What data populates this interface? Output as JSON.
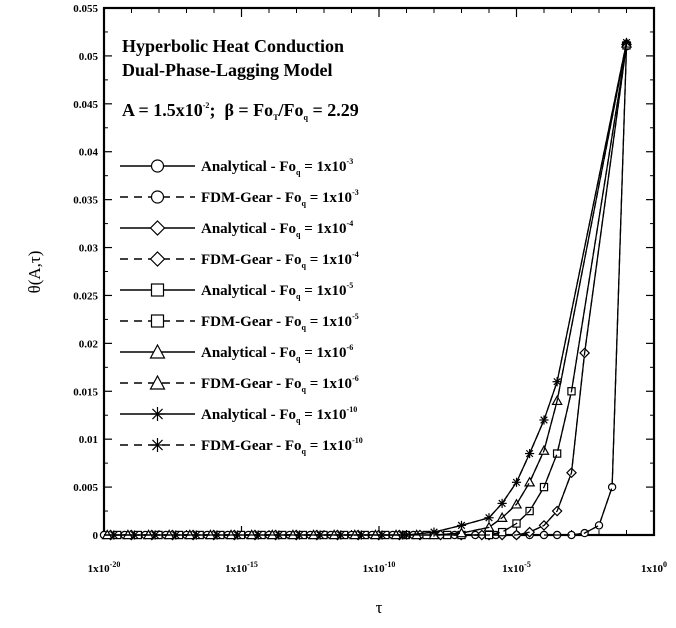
{
  "chart_data": {
    "type": "line",
    "xscale": "log",
    "xlim": [
      1e-20,
      1
    ],
    "ylim": [
      0,
      0.055
    ],
    "xlabel": "τ",
    "ylabel": "θ(A,τ)",
    "grid": false,
    "legend_position": "upper-left inside plot",
    "title_lines": [
      "Hyperbolic Heat Conduction",
      "Dual-Phase-Lagging Model"
    ],
    "params": {
      "A_base": "A = 1.5x10",
      "A_exp": "-2",
      "semi": ";",
      "beta_pre": "β = Fo",
      "tau_sub": "T",
      "slash": "/Fo",
      "q_sub": "q",
      "beta_val": " = 2.29"
    },
    "yticks": [
      "0",
      "0.005",
      "0.01",
      "0.015",
      "0.02",
      "0.025",
      "0.03",
      "0.035",
      "0.04",
      "0.045",
      "0.05",
      "0.055"
    ],
    "xticks": [
      {
        "base": "1x10",
        "exp": "-20"
      },
      {
        "base": "1x10",
        "exp": "-15"
      },
      {
        "base": "1x10",
        "exp": "-10"
      },
      {
        "base": "1x10",
        "exp": "-5"
      },
      {
        "base": "1x10",
        "exp": "0"
      }
    ],
    "series": [
      {
        "method": "Analytical",
        "dash": "solid",
        "marker": "circle",
        "fo_exp": "-3",
        "x": [
          1e-05,
          3e-05,
          0.0001,
          0.0003,
          0.001,
          0.003,
          0.01,
          0.03,
          0.1
        ],
        "y": [
          0,
          0,
          0,
          0,
          0,
          0.0002,
          0.001,
          0.005,
          0.051
        ]
      },
      {
        "method": "FDM-Gear",
        "dash": "dashed",
        "marker": "circle",
        "fo_exp": "-3",
        "x": [
          1e-05,
          3e-05,
          0.0001,
          0.0003,
          0.001,
          0.003,
          0.01,
          0.03,
          0.1
        ],
        "y": [
          0,
          0,
          0,
          0,
          0,
          0.0002,
          0.001,
          0.005,
          0.051
        ]
      },
      {
        "method": "Analytical",
        "dash": "solid",
        "marker": "diamond",
        "fo_exp": "-4",
        "x": [
          1e-06,
          3e-06,
          1e-05,
          3e-05,
          0.0001,
          0.0003,
          0.001,
          0.003,
          0.1
        ],
        "y": [
          0,
          0,
          0,
          0.0003,
          0.001,
          0.0025,
          0.0065,
          0.019,
          0.0512
        ]
      },
      {
        "method": "FDM-Gear",
        "dash": "dashed",
        "marker": "diamond",
        "fo_exp": "-4",
        "x": [
          1e-06,
          3e-06,
          1e-05,
          3e-05,
          0.0001,
          0.0003,
          0.001,
          0.003,
          0.1
        ],
        "y": [
          0,
          0,
          0,
          0.0003,
          0.001,
          0.0025,
          0.0065,
          0.019,
          0.0512
        ]
      },
      {
        "method": "Analytical",
        "dash": "solid",
        "marker": "square",
        "fo_exp": "-5",
        "x": [
          1e-07,
          1e-06,
          3e-06,
          1e-05,
          3e-05,
          0.0001,
          0.0003,
          0.001,
          0.1
        ],
        "y": [
          0,
          0,
          0.0003,
          0.0012,
          0.0025,
          0.005,
          0.0085,
          0.015,
          0.0511
        ]
      },
      {
        "method": "FDM-Gear",
        "dash": "dashed",
        "marker": "square",
        "fo_exp": "-5",
        "x": [
          1e-07,
          1e-06,
          3e-06,
          1e-05,
          3e-05,
          0.0001,
          0.0003,
          0.001,
          0.1
        ],
        "y": [
          0,
          0,
          0.0003,
          0.0012,
          0.0025,
          0.005,
          0.0085,
          0.015,
          0.0511
        ]
      },
      {
        "method": "Analytical",
        "dash": "solid",
        "marker": "triangle",
        "fo_exp": "-6",
        "x": [
          1e-08,
          1e-07,
          1e-06,
          3e-06,
          1e-05,
          3e-05,
          0.0001,
          0.0003,
          0.1
        ],
        "y": [
          0,
          0.0002,
          0.0008,
          0.0018,
          0.0032,
          0.0055,
          0.0088,
          0.014,
          0.0513
        ]
      },
      {
        "method": "FDM-Gear",
        "dash": "dashed",
        "marker": "triangle",
        "fo_exp": "-6",
        "x": [
          1e-08,
          1e-07,
          1e-06,
          3e-06,
          1e-05,
          3e-05,
          0.0001,
          0.0003,
          0.1
        ],
        "y": [
          0,
          0.0002,
          0.0008,
          0.0018,
          0.0032,
          0.0055,
          0.0088,
          0.014,
          0.0513
        ]
      },
      {
        "method": "Analytical",
        "dash": "solid",
        "marker": "asterisk",
        "fo_exp": "-10",
        "x": [
          1e-09,
          1e-08,
          1e-07,
          1e-06,
          3e-06,
          1e-05,
          3e-05,
          0.0001,
          0.0003,
          0.1
        ],
        "y": [
          0,
          0.0003,
          0.001,
          0.0018,
          0.0033,
          0.0055,
          0.0085,
          0.012,
          0.016,
          0.0514
        ]
      },
      {
        "method": "FDM-Gear",
        "dash": "dashed",
        "marker": "asterisk",
        "fo_exp": "-10",
        "x": [
          1e-09,
          1e-08,
          1e-07,
          1e-06,
          3e-06,
          1e-05,
          3e-05,
          0.0001,
          0.0003,
          0.1
        ],
        "y": [
          0,
          0.0003,
          0.001,
          0.0018,
          0.0033,
          0.0055,
          0.0085,
          0.012,
          0.016,
          0.0514
        ]
      }
    ],
    "legend_fo_label": "Fo",
    "legend_fo_sub": "q",
    "legend_eq": " = 1x10",
    "legend_sep": " - "
  }
}
